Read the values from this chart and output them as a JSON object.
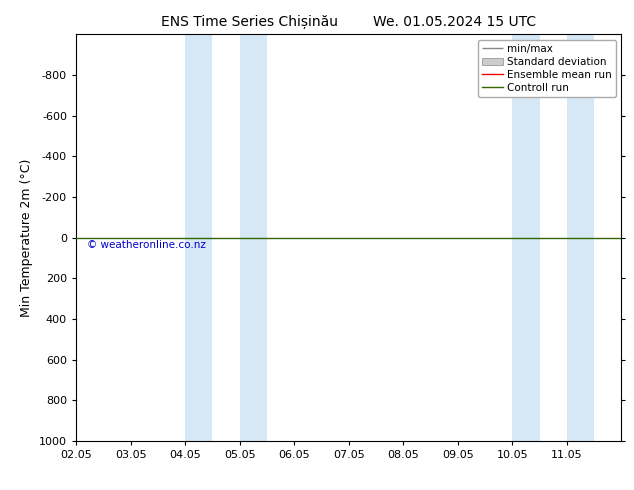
{
  "title_left": "ENS Time Series Chișinău",
  "title_right": "We. 01.05.2024 15 UTC",
  "ylabel": "Min Temperature 2m (°C)",
  "ylim_top": -1000,
  "ylim_bottom": 1000,
  "yticks": [
    -800,
    -600,
    -400,
    -200,
    0,
    200,
    400,
    600,
    800,
    1000
  ],
  "xlim_left": 0,
  "xlim_right": 10,
  "xtick_positions": [
    0,
    1,
    2,
    3,
    4,
    5,
    6,
    7,
    8,
    9
  ],
  "xtick_labels": [
    "02.05",
    "03.05",
    "04.05",
    "05.05",
    "06.05",
    "07.05",
    "08.05",
    "09.05",
    "10.05",
    "11.05"
  ],
  "green_line_y": 0,
  "blue_bands": [
    {
      "x_start": 2.0,
      "x_end": 2.5
    },
    {
      "x_start": 3.0,
      "x_end": 3.5
    },
    {
      "x_start": 8.0,
      "x_end": 8.5
    },
    {
      "x_start": 9.0,
      "x_end": 9.5
    }
  ],
  "blue_band_color": "#d6e8f5",
  "background_color": "#ffffff",
  "plot_bg_color": "#ffffff",
  "green_line_color": "#336600",
  "red_line_color": "#ff0000",
  "watermark": "© weatheronline.co.nz",
  "watermark_color": "#0000cc",
  "legend_items": [
    "min/max",
    "Standard deviation",
    "Ensemble mean run",
    "Controll run"
  ],
  "legend_line_color": "#888888",
  "legend_std_color": "#cccccc",
  "legend_ensemble_color": "#ff0000",
  "legend_control_color": "#336600",
  "title_fontsize": 10,
  "axis_fontsize": 9,
  "tick_fontsize": 8,
  "legend_fontsize": 7.5
}
